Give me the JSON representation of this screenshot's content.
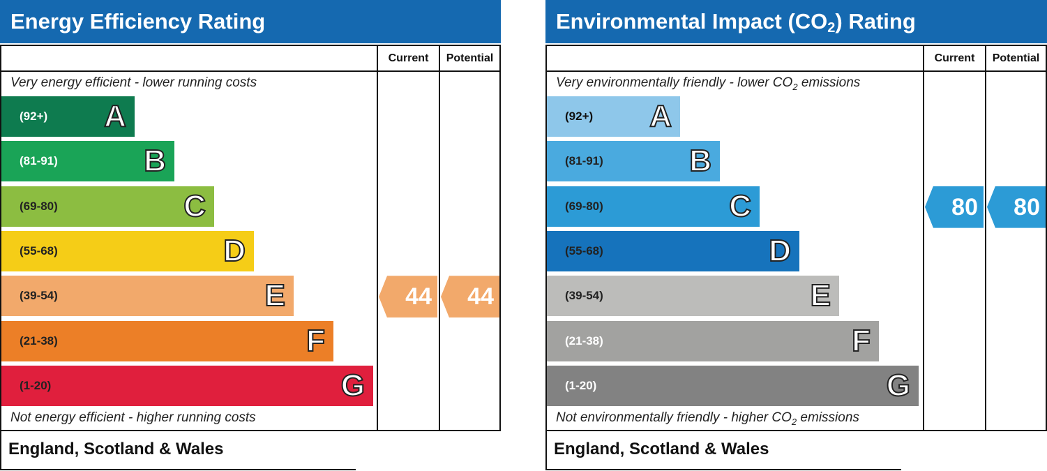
{
  "chart_data": [
    {
      "type": "bar",
      "title": "Energy Efficiency Rating",
      "column_headers": [
        "Current",
        "Potential"
      ],
      "top_caption": "Very energy efficient - lower running costs",
      "bottom_caption": "Not energy efficient - higher running costs",
      "footer": "England, Scotland & Wales",
      "bands": [
        {
          "letter": "A",
          "range": "(92+)",
          "color": "#0e7b4f",
          "text_color": "#ffffff"
        },
        {
          "letter": "B",
          "range": "(81-91)",
          "color": "#1aa457",
          "text_color": "#ffffff"
        },
        {
          "letter": "C",
          "range": "(69-80)",
          "color": "#8cbd41",
          "text_color": "#222222"
        },
        {
          "letter": "D",
          "range": "(55-68)",
          "color": "#f5cd17",
          "text_color": "#222222"
        },
        {
          "letter": "E",
          "range": "(39-54)",
          "color": "#f2a96b",
          "text_color": "#222222"
        },
        {
          "letter": "F",
          "range": "(21-38)",
          "color": "#ec7f27",
          "text_color": "#222222"
        },
        {
          "letter": "G",
          "range": "(1-20)",
          "color": "#e01f3d",
          "text_color": "#222222"
        }
      ],
      "current": 44,
      "potential": 44,
      "indicator_color": "#f2a96b"
    },
    {
      "type": "bar",
      "title_parts": [
        "Environmental Impact (CO",
        "2",
        ") Rating"
      ],
      "column_headers": [
        "Current",
        "Potential"
      ],
      "top_caption_parts": [
        "Very environmentally friendly - lower CO",
        "2",
        " emissions"
      ],
      "bottom_caption_parts": [
        "Not environmentally friendly - higher CO",
        "2",
        " emissions"
      ],
      "footer": "England, Scotland & Wales",
      "bands": [
        {
          "letter": "A",
          "range": "(92+)",
          "color": "#8ec7ea",
          "text_color": "#111111"
        },
        {
          "letter": "B",
          "range": "(81-91)",
          "color": "#4aaadf",
          "text_color": "#222222"
        },
        {
          "letter": "C",
          "range": "(69-80)",
          "color": "#2c9bd6",
          "text_color": "#222222"
        },
        {
          "letter": "D",
          "range": "(55-68)",
          "color": "#1673bc",
          "text_color": "#222222"
        },
        {
          "letter": "E",
          "range": "(39-54)",
          "color": "#bcbcba",
          "text_color": "#222222"
        },
        {
          "letter": "F",
          "range": "(21-38)",
          "color": "#a2a2a0",
          "text_color": "#ffffff"
        },
        {
          "letter": "G",
          "range": "(1-20)",
          "color": "#828282",
          "text_color": "#ffffff"
        }
      ],
      "current": 80,
      "potential": 80,
      "indicator_color": "#2c9bd6"
    }
  ]
}
